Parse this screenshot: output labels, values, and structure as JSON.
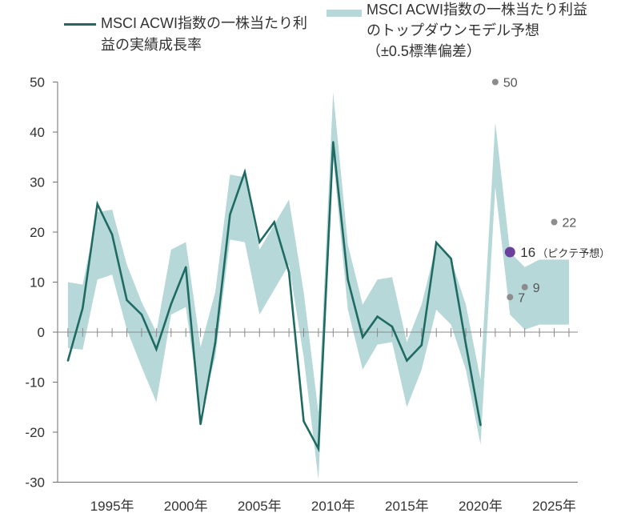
{
  "chart_data": {
    "type": "line",
    "title": "",
    "xlabel": "",
    "ylabel": "",
    "xlim": [
      1991.3,
      2026.6
    ],
    "ylim": [
      -30,
      50
    ],
    "grid": false,
    "legend_position": "top",
    "y_ticks": [
      50,
      40,
      30,
      20,
      10,
      0,
      -10,
      -20,
      -30
    ],
    "y_tick_labels": [
      "50",
      "40",
      "30",
      "20",
      "10",
      "0",
      "-10",
      "-20",
      "-30"
    ],
    "x_ticks": [
      1995,
      2000,
      2005,
      2010,
      2015,
      2020,
      2025
    ],
    "x_tick_labels": [
      "1995年",
      "2000年",
      "2005年",
      "2010年",
      "2015年",
      "2020年",
      "2025年"
    ],
    "x_minor_ticks": [
      1992,
      1993,
      1994,
      1995,
      1996,
      1997,
      1998,
      1999,
      2000,
      2001,
      2002,
      2003,
      2004,
      2005,
      2006,
      2007,
      2008,
      2009,
      2010,
      2011,
      2012,
      2013,
      2014,
      2015,
      2016,
      2017,
      2018,
      2019,
      2020,
      2021,
      2022,
      2023,
      2024,
      2025,
      2026
    ],
    "series": [
      {
        "name": "MSCI ACWI指数の一株当たり利益の実績成長率",
        "type": "line",
        "color": "#1f6b63",
        "x": [
          1992,
          1993,
          1994,
          1995,
          1996,
          1997,
          1998,
          1999,
          2000,
          2001,
          2002,
          2003,
          2004,
          2005,
          2006,
          2007,
          2008,
          2009,
          2010,
          2011,
          2012,
          2013,
          2014,
          2015,
          2016,
          2017,
          2018,
          2019,
          2020
        ],
        "y": [
          -5.7,
          4.8,
          25.6,
          19.5,
          6.4,
          3.5,
          -3.4,
          5.6,
          13.0,
          -18.4,
          -2.1,
          23.5,
          32.0,
          18.0,
          22.0,
          12.0,
          -17.8,
          -23.3,
          38.0,
          10.5,
          -1.0,
          3.1,
          1.1,
          -5.7,
          -2.6,
          17.9,
          14.7,
          -2.4,
          -18.6
        ]
      },
      {
        "name": "MSCI ACWI指数の一株当たり利益のトップダウンモデル予想",
        "name_note": "（±0.5標準偏差）",
        "type": "area",
        "color": "#b7d8d8",
        "x": [
          1992,
          1993,
          1994,
          1995,
          1996,
          1997,
          1998,
          1999,
          2000,
          2001,
          2002,
          2003,
          2004,
          2005,
          2006,
          2007,
          2008,
          2009,
          2010,
          2011,
          2012,
          2013,
          2014,
          2015,
          2016,
          2017,
          2018,
          2019,
          2020,
          2021,
          2022,
          2023,
          2024,
          2025,
          2026
        ],
        "upper": [
          10,
          9.5,
          24,
          24.5,
          13.5,
          6,
          0,
          16.5,
          18,
          -3,
          8,
          31.5,
          31,
          16.5,
          21.5,
          26.5,
          8,
          -16,
          48,
          17.5,
          5.5,
          10.5,
          11,
          -2,
          5.5,
          17.5,
          14.5,
          5.5,
          -9.5,
          42,
          16,
          13,
          14.5,
          14.5,
          14.5
        ],
        "lower": [
          -3.2,
          -3.5,
          10.5,
          11.5,
          0.5,
          -7,
          -14,
          3.5,
          5,
          -16,
          -5,
          18.5,
          18,
          3.5,
          8.5,
          13.5,
          -5,
          -29.5,
          35,
          4.5,
          -7.5,
          -2.5,
          -2,
          -15,
          -7.5,
          4.5,
          1.5,
          -7.5,
          -22.5,
          29,
          3.5,
          0.5,
          1.5,
          1.5,
          1.5
        ]
      }
    ],
    "points": [
      {
        "x": 2021,
        "y": 50,
        "label": "50",
        "color": "#8c8c8c"
      },
      {
        "x": 2022,
        "y": 16,
        "label": "16",
        "note": "（ピクテ予想）",
        "color": "#6a3f9e"
      },
      {
        "x": 2022,
        "y": 7,
        "label": "7",
        "color": "#8c8c8c"
      },
      {
        "x": 2023,
        "y": 9,
        "label": "9",
        "color": "#8c8c8c"
      },
      {
        "x": 2025,
        "y": 22,
        "label": "22",
        "color": "#8c8c8c"
      }
    ]
  }
}
